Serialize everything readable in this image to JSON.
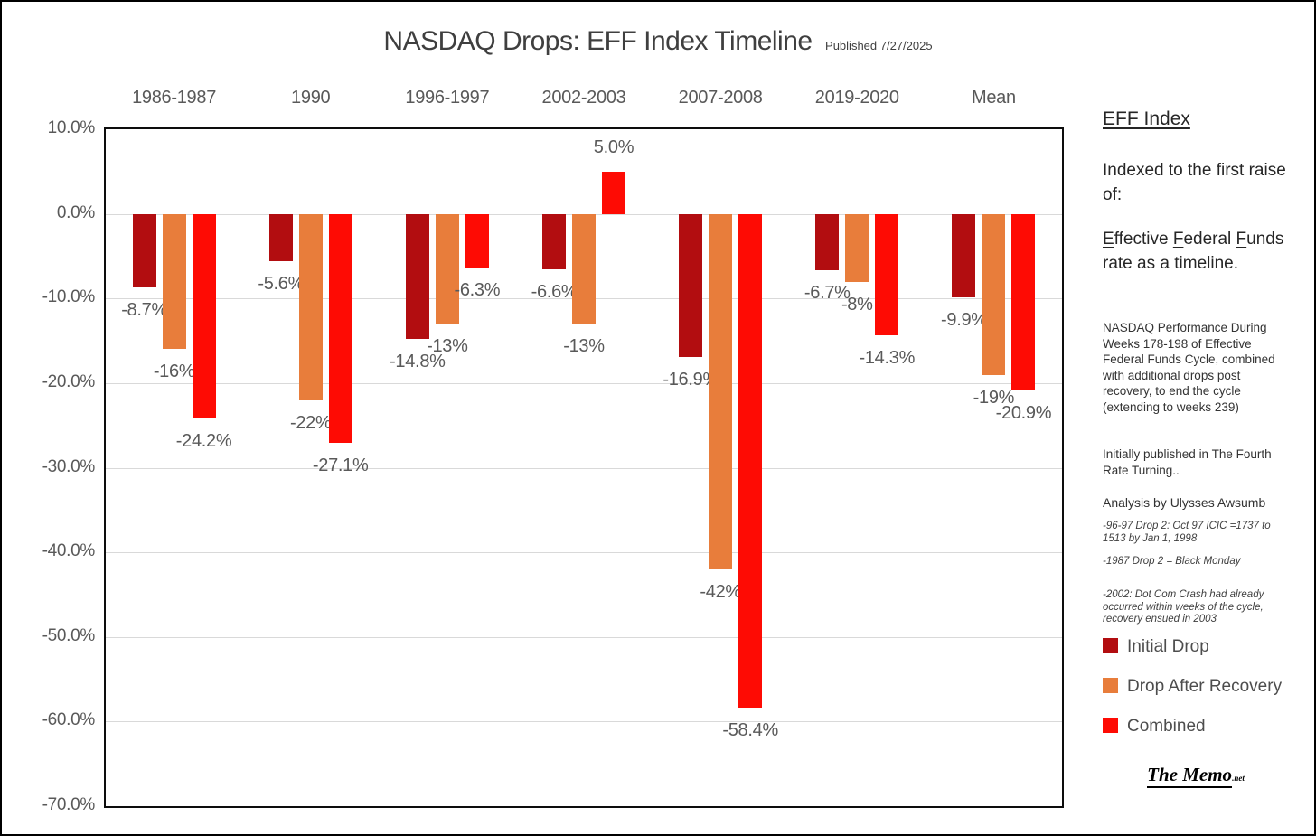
{
  "title": {
    "text": "NASDAQ Drops: EFF Index Timeline",
    "published": "Published 7/27/2025"
  },
  "chart_data": {
    "type": "bar",
    "title": "NASDAQ Drops: EFF Index Timeline",
    "subtitle": "Published 7/27/2025",
    "categories": [
      "1986-1987",
      "1990",
      "1996-1997",
      "2002-2003",
      "2007-2008",
      "2019-2020",
      "Mean"
    ],
    "series": [
      {
        "name": "Initial Drop",
        "color": "#b20d10",
        "values": [
          -8.7,
          -5.6,
          -14.8,
          -6.6,
          -16.9,
          -6.7,
          -9.9
        ],
        "labels": [
          "-8.7%",
          "-5.6%",
          "-14.8%",
          "-6.6%",
          "-16.9%",
          "-6.7%",
          "-9.9%"
        ]
      },
      {
        "name": "Drop After Recovery",
        "color": "#e87d3b",
        "values": [
          -16,
          -22,
          -13,
          -13,
          -42,
          -8,
          -19
        ],
        "labels": [
          "-16%",
          "-22%",
          "-13%",
          "-13%",
          "-42%",
          "-8%",
          "-19%"
        ]
      },
      {
        "name": "Combined",
        "color": "#fe0b04",
        "values": [
          -24.2,
          -27.1,
          -6.3,
          5.0,
          -58.4,
          -14.3,
          -20.9
        ],
        "labels": [
          "-24.2%",
          "-27.1%",
          "-6.3%",
          "5.0%",
          "-58.4%",
          "-14.3%",
          "-20.9%"
        ]
      }
    ],
    "y_axis": {
      "min": -70,
      "max": 10,
      "step": 10,
      "tick_labels": [
        "10.0%",
        "0.0%",
        "-10.0%",
        "-20.0%",
        "-30.0%",
        "-40.0%",
        "-50.0%",
        "-60.0%",
        "-70.0%"
      ]
    },
    "grid": true,
    "legend_position": "right"
  },
  "sidebar": {
    "heading": "EFF Index",
    "intro": "Indexed to the first raise of:",
    "effective_text": "Effective Federal Funds rate as a timeline.",
    "description": "NASDAQ Performance During Weeks 178-198 of Effective Federal Funds Cycle, combined with additional drops post recovery, to end the cycle (extending to weeks 239)",
    "published_note": "Initially published in The Fourth Rate Turning..",
    "analysis": "Analysis by Ulysses Awsumb",
    "notes": [
      "-96-97 Drop 2: Oct 97 ICIC =1737 to 1513 by Jan 1, 1998",
      "-1987 Drop 2 = Black Monday",
      "-2002: Dot Com Crash had already occurred within weeks of the cycle, recovery ensued in 2003"
    ],
    "legend": [
      {
        "label": "Initial Drop",
        "color": "#b20d10"
      },
      {
        "label": "Drop After Recovery",
        "color": "#e87d3b"
      },
      {
        "label": "Combined",
        "color": "#fe0b04"
      }
    ],
    "logo": {
      "text": "The Memo",
      "suffix": ".net"
    }
  }
}
